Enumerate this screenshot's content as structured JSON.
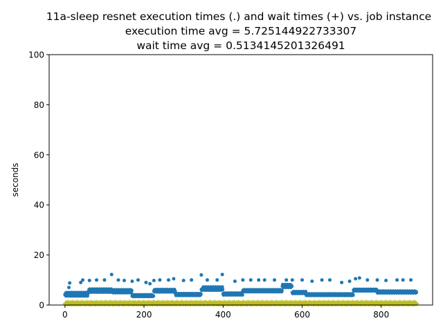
{
  "chart_data": {
    "type": "scatter",
    "title_lines": [
      "11a-sleep resnet execution times (.) and wait times (+) vs. job instance",
      "execution time avg = 5.725144922733307",
      "wait time avg = 0.5134145201326491"
    ],
    "xlabel": "",
    "ylabel": "seconds",
    "xlim": [
      -40,
      930
    ],
    "ylim": [
      0,
      100
    ],
    "x_ticks": [
      0,
      200,
      400,
      600,
      800
    ],
    "y_ticks": [
      0,
      20,
      40,
      60,
      80,
      100
    ],
    "grid": false,
    "legend": "none",
    "series": [
      {
        "marker": "dot",
        "color": "#1f77b4",
        "segments": [
          {
            "x_start": 0,
            "x_end": 60,
            "values": [
              4.2,
              3.9,
              4.8,
              3.6,
              4.5,
              5.0
            ]
          },
          {
            "x_start": 60,
            "x_end": 120,
            "values": [
              5.6,
              6.2,
              5.1,
              6.4,
              5.8,
              6.0
            ]
          },
          {
            "x_start": 120,
            "x_end": 170,
            "values": [
              5.2,
              5.8,
              4.9,
              5.5,
              6.1,
              5.0
            ]
          },
          {
            "x_start": 170,
            "x_end": 225,
            "values": [
              3.6,
              4.1,
              3.4,
              3.9,
              3.7,
              3.5
            ]
          },
          {
            "x_start": 225,
            "x_end": 280,
            "values": [
              5.5,
              6.0,
              5.2,
              5.8,
              6.2,
              5.4
            ]
          },
          {
            "x_start": 280,
            "x_end": 345,
            "values": [
              4.3,
              3.8,
              4.6,
              4.0,
              4.4,
              3.9
            ]
          },
          {
            "x_start": 345,
            "x_end": 400,
            "values": [
              6.2,
              5.9,
              6.5,
              6.0,
              6.8,
              7.2
            ]
          },
          {
            "x_start": 400,
            "x_end": 450,
            "values": [
              4.5,
              4.0,
              4.8,
              4.2,
              4.6,
              4.3
            ]
          },
          {
            "x_start": 450,
            "x_end": 550,
            "values": [
              5.6,
              6.0,
              5.3,
              5.8,
              6.1,
              5.5
            ]
          },
          {
            "x_start": 550,
            "x_end": 575,
            "values": [
              7.5,
              8.2,
              7.8,
              7.0,
              8.0,
              7.6
            ]
          },
          {
            "x_start": 575,
            "x_end": 610,
            "values": [
              5.0,
              4.6,
              5.2,
              4.8,
              5.4,
              4.9
            ]
          },
          {
            "x_start": 610,
            "x_end": 730,
            "values": [
              4.2,
              3.8,
              4.5,
              4.0,
              4.3,
              3.9
            ]
          },
          {
            "x_start": 730,
            "x_end": 790,
            "values": [
              6.0,
              5.6,
              6.3,
              5.9,
              6.2,
              5.7
            ]
          },
          {
            "x_start": 790,
            "x_end": 890,
            "values": [
              5.1,
              4.8,
              5.4,
              5.0,
              5.6,
              5.2
            ]
          }
        ],
        "outliers": [
          {
            "x": 10,
            "y": 7.0
          },
          {
            "x": 12,
            "y": 8.8
          },
          {
            "x": 40,
            "y": 9.0
          },
          {
            "x": 45,
            "y": 10.0
          },
          {
            "x": 62,
            "y": 9.8
          },
          {
            "x": 80,
            "y": 10.0
          },
          {
            "x": 100,
            "y": 10.0
          },
          {
            "x": 118,
            "y": 12.2
          },
          {
            "x": 135,
            "y": 10.0
          },
          {
            "x": 150,
            "y": 9.8
          },
          {
            "x": 170,
            "y": 9.5
          },
          {
            "x": 185,
            "y": 10.0
          },
          {
            "x": 205,
            "y": 9.0
          },
          {
            "x": 215,
            "y": 8.5
          },
          {
            "x": 225,
            "y": 9.8
          },
          {
            "x": 240,
            "y": 10.0
          },
          {
            "x": 262,
            "y": 10.0
          },
          {
            "x": 275,
            "y": 10.5
          },
          {
            "x": 300,
            "y": 9.8
          },
          {
            "x": 320,
            "y": 10.0
          },
          {
            "x": 345,
            "y": 12.0
          },
          {
            "x": 360,
            "y": 10.0
          },
          {
            "x": 385,
            "y": 10.0
          },
          {
            "x": 398,
            "y": 12.2
          },
          {
            "x": 430,
            "y": 9.5
          },
          {
            "x": 450,
            "y": 10.0
          },
          {
            "x": 470,
            "y": 10.0
          },
          {
            "x": 490,
            "y": 10.0
          },
          {
            "x": 505,
            "y": 10.0
          },
          {
            "x": 530,
            "y": 10.0
          },
          {
            "x": 560,
            "y": 10.0
          },
          {
            "x": 575,
            "y": 10.0
          },
          {
            "x": 600,
            "y": 10.0
          },
          {
            "x": 625,
            "y": 9.5
          },
          {
            "x": 650,
            "y": 10.0
          },
          {
            "x": 670,
            "y": 10.0
          },
          {
            "x": 700,
            "y": 9.0
          },
          {
            "x": 720,
            "y": 9.5
          },
          {
            "x": 735,
            "y": 10.5
          },
          {
            "x": 745,
            "y": 10.8
          },
          {
            "x": 765,
            "y": 10.0
          },
          {
            "x": 790,
            "y": 10.0
          },
          {
            "x": 812,
            "y": 9.8
          },
          {
            "x": 840,
            "y": 10.0
          },
          {
            "x": 855,
            "y": 10.0
          },
          {
            "x": 875,
            "y": 10.0
          }
        ]
      },
      {
        "marker": "plus",
        "color": "#bcbd22",
        "x_start": 0,
        "x_end": 890,
        "values": [
          0.3,
          0.7,
          0.5,
          1.1,
          0.4,
          0.8,
          0.2,
          1.3,
          0.6,
          0.9,
          0.5,
          1.0
        ]
      }
    ]
  }
}
